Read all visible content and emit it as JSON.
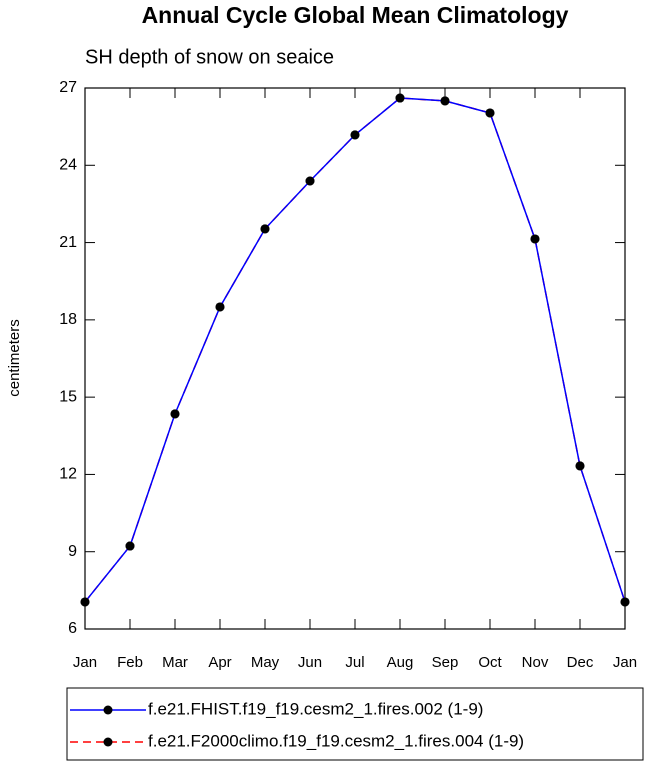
{
  "chart_data": {
    "type": "line",
    "title": "Annual Cycle Global Mean Climatology",
    "subtitle": "SH depth of snow on seaice",
    "y_label": "centimeters",
    "categories": [
      "Jan",
      "Feb",
      "Mar",
      "Apr",
      "May",
      "Jun",
      "Jul",
      "Aug",
      "Sep",
      "Oct",
      "Nov",
      "Dec",
      "Jan"
    ],
    "series": [
      {
        "name": "f.e21.FHIST.f19_f19.cesm2_1.fires.002 (1-9)",
        "color": "#0000ff",
        "dash": false,
        "values": [
          7.05,
          9.22,
          14.35,
          18.5,
          21.53,
          23.39,
          25.18,
          26.61,
          26.5,
          26.03,
          21.14,
          12.33,
          7.05
        ]
      },
      {
        "name": "f.e21.F2000climo.f19_f19.cesm2_1.fires.004 (1-9)",
        "color": "#ff0000",
        "dash": true,
        "values": [
          7.05,
          9.22,
          14.35,
          18.5,
          21.53,
          23.39,
          25.18,
          26.61,
          26.5,
          26.03,
          21.14,
          12.33,
          7.05
        ]
      }
    ],
    "ylim": [
      6,
      27
    ],
    "yticks": [
      6,
      9,
      12,
      15,
      18,
      21,
      24,
      27
    ],
    "grid": false
  }
}
